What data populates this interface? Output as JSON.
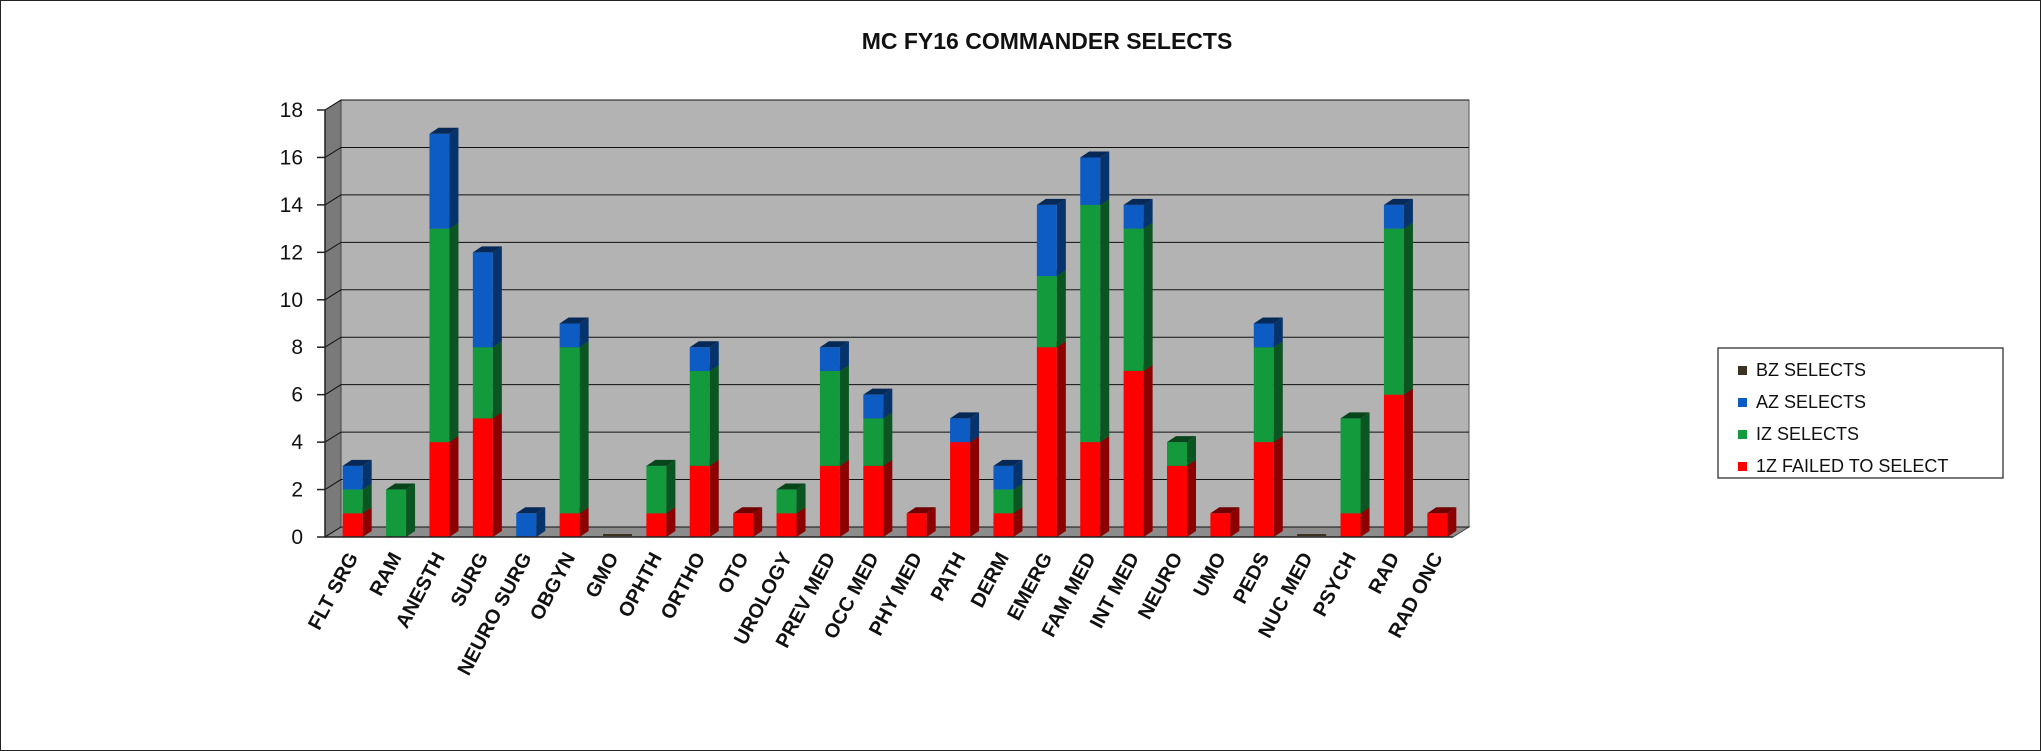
{
  "chart_data": {
    "type": "bar",
    "stacked": true,
    "three_d": true,
    "title": "MC FY16 COMMANDER SELECTS",
    "categories": [
      "FLT SRG",
      "RAM",
      "ANESTH",
      "SURG",
      "NEURO SURG",
      "OBGYN",
      "GMO",
      "OPHTH",
      "ORTHO",
      "OTO",
      "UROLOGY",
      "PREV MED",
      "OCC MED",
      "PHY MED",
      "PATH",
      "DERM",
      "EMERG",
      "FAM MED",
      "INT MED",
      "NEURO",
      "UMO",
      "PEDS",
      "NUC MED",
      "PSYCH",
      "RAD",
      "RAD ONC"
    ],
    "series": [
      {
        "name": "1Z FAILED TO SELECT",
        "color": "#ff0000",
        "values": [
          1,
          0,
          4,
          5,
          0,
          1,
          0,
          1,
          3,
          1,
          1,
          3,
          3,
          1,
          4,
          1,
          8,
          4,
          7,
          3,
          1,
          4,
          0,
          1,
          6,
          1
        ]
      },
      {
        "name": "IZ SELECTS",
        "color": "#129a3c",
        "values": [
          1,
          2,
          9,
          3,
          0,
          7,
          0,
          2,
          4,
          0,
          1,
          4,
          2,
          0,
          0,
          1,
          3,
          10,
          6,
          1,
          0,
          4,
          0,
          4,
          7,
          0
        ]
      },
      {
        "name": "AZ SELECTS",
        "color": "#0d5cc4",
        "values": [
          1,
          0,
          4,
          4,
          1,
          1,
          0,
          0,
          1,
          0,
          0,
          1,
          1,
          0,
          1,
          1,
          3,
          2,
          1,
          0,
          0,
          1,
          0,
          0,
          1,
          0
        ]
      },
      {
        "name": "BZ SELECTS",
        "color": "#3b3320",
        "values": [
          0,
          0,
          0,
          0,
          0,
          0,
          0,
          0,
          0,
          0,
          0,
          0,
          0,
          0,
          0,
          0,
          0,
          0,
          0,
          0,
          0,
          0,
          0,
          0,
          0,
          0
        ]
      }
    ],
    "ylim": [
      0,
      18
    ],
    "yticks": [
      0,
      2,
      4,
      6,
      8,
      10,
      12,
      14,
      16,
      18
    ],
    "xlabel": "",
    "ylabel": "",
    "grid": true,
    "legend_position": "right",
    "plot_background": "#b3b3b3"
  }
}
